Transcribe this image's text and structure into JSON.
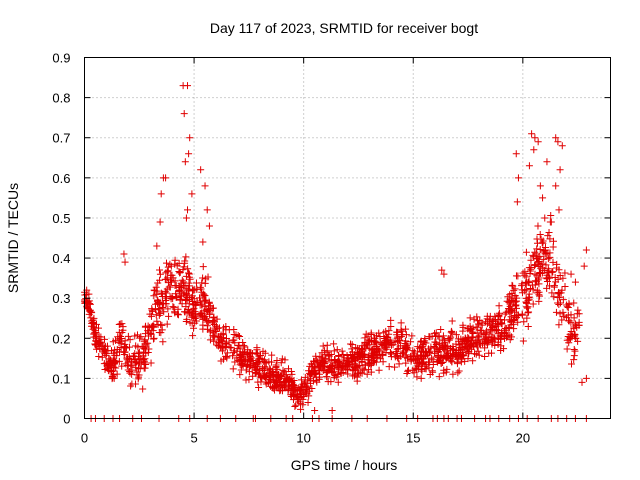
{
  "chart_data": {
    "type": "scatter",
    "title": "Day 117 of 2023, SRMTID for receiver bogt",
    "xlabel": "GPS time / hours",
    "ylabel": "SRMTID / TECUs",
    "xlim": [
      0,
      24
    ],
    "ylim": [
      0,
      0.9
    ],
    "xticks": [
      0,
      5,
      10,
      15,
      20
    ],
    "xtick_labels": [
      "0",
      "5",
      "10",
      "15",
      "20"
    ],
    "yticks": [
      0,
      0.1,
      0.2,
      0.3,
      0.4,
      0.5,
      0.6,
      0.7,
      0.8,
      0.9
    ],
    "ytick_labels": [
      "0",
      "0.1",
      "0.2",
      "0.3",
      "0.4",
      "0.5",
      "0.6",
      "0.7",
      "0.8",
      "0.9"
    ],
    "grid": true,
    "marker": "+",
    "color": "#e00000",
    "series": [
      {
        "name": "SRMTID",
        "trend": [
          [
            0.0,
            0.3
          ],
          [
            0.2,
            0.29
          ],
          [
            0.5,
            0.2
          ],
          [
            0.8,
            0.18
          ],
          [
            1.0,
            0.15
          ],
          [
            1.3,
            0.12
          ],
          [
            1.6,
            0.2
          ],
          [
            2.0,
            0.16
          ],
          [
            2.3,
            0.13
          ],
          [
            2.7,
            0.15
          ],
          [
            3.0,
            0.22
          ],
          [
            3.3,
            0.28
          ],
          [
            3.7,
            0.3
          ],
          [
            4.0,
            0.32
          ],
          [
            4.5,
            0.33
          ],
          [
            4.9,
            0.28
          ],
          [
            5.2,
            0.28
          ],
          [
            5.5,
            0.3
          ],
          [
            5.8,
            0.24
          ],
          [
            6.2,
            0.2
          ],
          [
            6.6,
            0.18
          ],
          [
            7.0,
            0.17
          ],
          [
            7.5,
            0.14
          ],
          [
            8.0,
            0.13
          ],
          [
            8.5,
            0.11
          ],
          [
            9.0,
            0.1
          ],
          [
            9.4,
            0.08
          ],
          [
            9.8,
            0.06
          ],
          [
            10.1,
            0.08
          ],
          [
            10.5,
            0.13
          ],
          [
            11.0,
            0.14
          ],
          [
            11.5,
            0.13
          ],
          [
            12.0,
            0.14
          ],
          [
            12.5,
            0.15
          ],
          [
            13.0,
            0.17
          ],
          [
            13.5,
            0.17
          ],
          [
            14.0,
            0.19
          ],
          [
            14.5,
            0.18
          ],
          [
            15.0,
            0.15
          ],
          [
            15.5,
            0.16
          ],
          [
            16.0,
            0.17
          ],
          [
            16.5,
            0.16
          ],
          [
            17.0,
            0.17
          ],
          [
            17.5,
            0.19
          ],
          [
            18.0,
            0.2
          ],
          [
            18.5,
            0.21
          ],
          [
            19.0,
            0.22
          ],
          [
            19.5,
            0.27
          ],
          [
            20.0,
            0.3
          ],
          [
            20.5,
            0.35
          ],
          [
            21.0,
            0.38
          ],
          [
            21.3,
            0.4
          ],
          [
            21.6,
            0.32
          ],
          [
            22.0,
            0.25
          ],
          [
            22.3,
            0.2
          ],
          [
            22.6,
            0.22
          ]
        ],
        "spread": [
          [
            0,
            0.02
          ],
          [
            1,
            0.05
          ],
          [
            3,
            0.08
          ],
          [
            4.5,
            0.1
          ],
          [
            6,
            0.07
          ],
          [
            8,
            0.05
          ],
          [
            10,
            0.04
          ],
          [
            12,
            0.05
          ],
          [
            14,
            0.06
          ],
          [
            16,
            0.06
          ],
          [
            18,
            0.06
          ],
          [
            19.5,
            0.09
          ],
          [
            21,
            0.14
          ],
          [
            22.6,
            0.08
          ]
        ],
        "peaks": [
          [
            4.5,
            0.83
          ],
          [
            4.7,
            0.83
          ],
          [
            4.55,
            0.76
          ],
          [
            4.8,
            0.7
          ],
          [
            4.75,
            0.66
          ],
          [
            4.6,
            0.64
          ],
          [
            4.9,
            0.56
          ],
          [
            4.7,
            0.52
          ],
          [
            4.65,
            0.5
          ],
          [
            3.6,
            0.6
          ],
          [
            3.7,
            0.6
          ],
          [
            3.5,
            0.56
          ],
          [
            3.45,
            0.49
          ],
          [
            3.3,
            0.43
          ],
          [
            5.3,
            0.62
          ],
          [
            5.5,
            0.58
          ],
          [
            5.6,
            0.52
          ],
          [
            5.7,
            0.48
          ],
          [
            5.4,
            0.44
          ],
          [
            1.8,
            0.41
          ],
          [
            1.85,
            0.39
          ],
          [
            16.3,
            0.37
          ],
          [
            16.4,
            0.36
          ],
          [
            19.7,
            0.66
          ],
          [
            19.8,
            0.6
          ],
          [
            19.75,
            0.54
          ],
          [
            20.3,
            0.63
          ],
          [
            20.4,
            0.71
          ],
          [
            20.55,
            0.7
          ],
          [
            20.7,
            0.69
          ],
          [
            20.5,
            0.67
          ],
          [
            21.5,
            0.7
          ],
          [
            21.6,
            0.69
          ],
          [
            21.8,
            0.68
          ],
          [
            21.1,
            0.64
          ],
          [
            21.7,
            0.62
          ],
          [
            20.8,
            0.58
          ],
          [
            21.5,
            0.58
          ],
          [
            20.9,
            0.55
          ],
          [
            21.65,
            0.52
          ],
          [
            21.0,
            0.5
          ],
          [
            21.3,
            0.49
          ],
          [
            22.9,
            0.42
          ],
          [
            22.8,
            0.38
          ],
          [
            22.2,
            0.36
          ],
          [
            22.4,
            0.34
          ],
          [
            10.2,
            0.04
          ],
          [
            10.5,
            0.02
          ],
          [
            11.3,
            0.02
          ],
          [
            9.6,
            0.03
          ],
          [
            22.9,
            0.1
          ],
          [
            22.7,
            0.09
          ],
          [
            0.1,
            0.32
          ],
          [
            0.2,
            0.31
          ]
        ],
        "zero_markers": [
          0.3,
          0.5,
          0.9,
          1.3,
          1.6,
          2.2,
          2.6,
          3.4,
          4.3,
          4.8,
          5.6,
          6.2,
          6.9,
          7.7,
          7.8,
          8.5,
          9.2,
          9.5,
          10.4,
          10.7,
          11.3,
          12.2,
          12.9,
          13.8,
          14.7,
          15.2,
          15.9,
          16.1,
          16.4,
          16.6,
          17.0,
          17.2,
          17.8,
          18.3,
          18.5,
          18.9,
          19.4,
          19.8,
          20.2,
          20.7,
          21.3,
          21.6,
          22.0,
          22.4,
          22.9
        ]
      }
    ]
  }
}
